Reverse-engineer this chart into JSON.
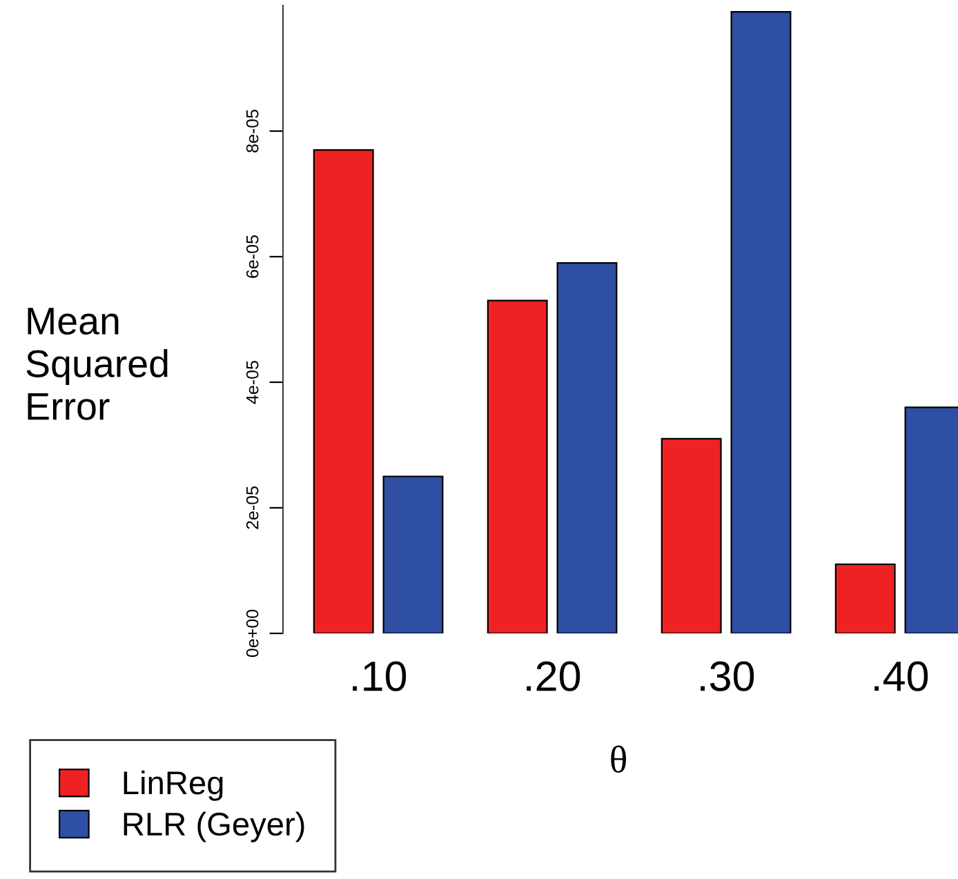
{
  "chart_data": {
    "type": "bar",
    "xlabel": "θ",
    "ylabel": "Mean\nSquared\nError",
    "categories": [
      ".10",
      ".20",
      ".30",
      ".40"
    ],
    "series": [
      {
        "name": "LinReg",
        "color": "#ee2222",
        "values": [
          7.7e-05,
          5.3e-05,
          3.1e-05,
          1.1e-05
        ]
      },
      {
        "name": "RLR (Geyer)",
        "color": "#2e4fa3",
        "values": [
          2.5e-05,
          5.9e-05,
          9.9e-05,
          3.6e-05
        ]
      }
    ],
    "ylim": [
      0,
      0.0001
    ],
    "yticks": [
      {
        "value": 0,
        "label": "0e+00"
      },
      {
        "value": 2e-05,
        "label": "2e-05"
      },
      {
        "value": 4e-05,
        "label": "4e-05"
      },
      {
        "value": 6e-05,
        "label": "6e-05"
      },
      {
        "value": 8e-05,
        "label": "8e-05"
      }
    ],
    "grid": false,
    "legend": "bottom left"
  }
}
